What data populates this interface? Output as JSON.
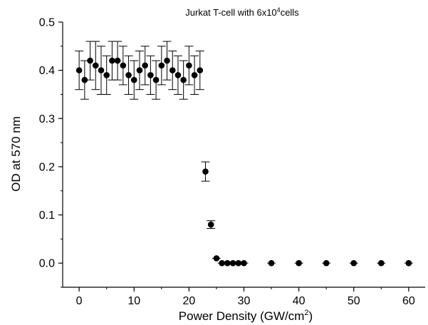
{
  "chart_data": {
    "type": "scatter",
    "title_parts": {
      "prefix": "Jurkat T-cell with 6x10",
      "superscript": "4",
      "suffix": "cells"
    },
    "xlabel_parts": {
      "prefix": "Power Density (GW/cm",
      "superscript": "2",
      "suffix": ")"
    },
    "ylabel": "OD at 570 nm",
    "xlim": [
      -3,
      63
    ],
    "ylim": [
      -0.05,
      0.5
    ],
    "x_ticks": [
      0,
      10,
      20,
      30,
      40,
      50,
      60
    ],
    "x_tick_labels": [
      "0",
      "10",
      "20",
      "30",
      "40",
      "50",
      "60"
    ],
    "y_ticks": [
      0.0,
      0.1,
      0.2,
      0.3,
      0.4,
      0.5
    ],
    "y_tick_labels": [
      "0.0",
      "0.1",
      "0.2",
      "0.3",
      "0.4",
      "0.5"
    ],
    "marker_color": "#000000",
    "grid": false,
    "legend": "none",
    "series": [
      {
        "x": [
          0,
          1,
          2,
          3,
          4,
          5,
          6,
          7,
          8,
          9,
          10,
          11,
          12,
          13,
          14,
          15,
          16,
          17,
          18,
          19,
          20,
          21,
          22,
          23,
          24,
          25,
          26,
          27,
          28,
          29,
          30,
          35,
          40,
          45,
          50,
          55,
          60
        ],
        "y": [
          0.4,
          0.38,
          0.42,
          0.41,
          0.4,
          0.39,
          0.42,
          0.42,
          0.41,
          0.39,
          0.38,
          0.4,
          0.41,
          0.39,
          0.38,
          0.41,
          0.42,
          0.4,
          0.39,
          0.38,
          0.41,
          0.39,
          0.4,
          0.19,
          0.08,
          0.01,
          0.0,
          0.0,
          0.0,
          0.0,
          0.0,
          0.0,
          0.0,
          0.0,
          0.0,
          0.0,
          0.0
        ],
        "error": [
          0.04,
          0.04,
          0.04,
          0.05,
          0.05,
          0.04,
          0.04,
          0.04,
          0.04,
          0.04,
          0.04,
          0.04,
          0.04,
          0.04,
          0.04,
          0.04,
          0.04,
          0.04,
          0.04,
          0.04,
          0.04,
          0.04,
          0.04,
          0.02,
          0.008,
          0.0,
          0.0,
          0.0,
          0.0,
          0.0,
          0.0,
          0.0,
          0.0,
          0.0,
          0.0,
          0.0,
          0.0
        ]
      }
    ]
  }
}
